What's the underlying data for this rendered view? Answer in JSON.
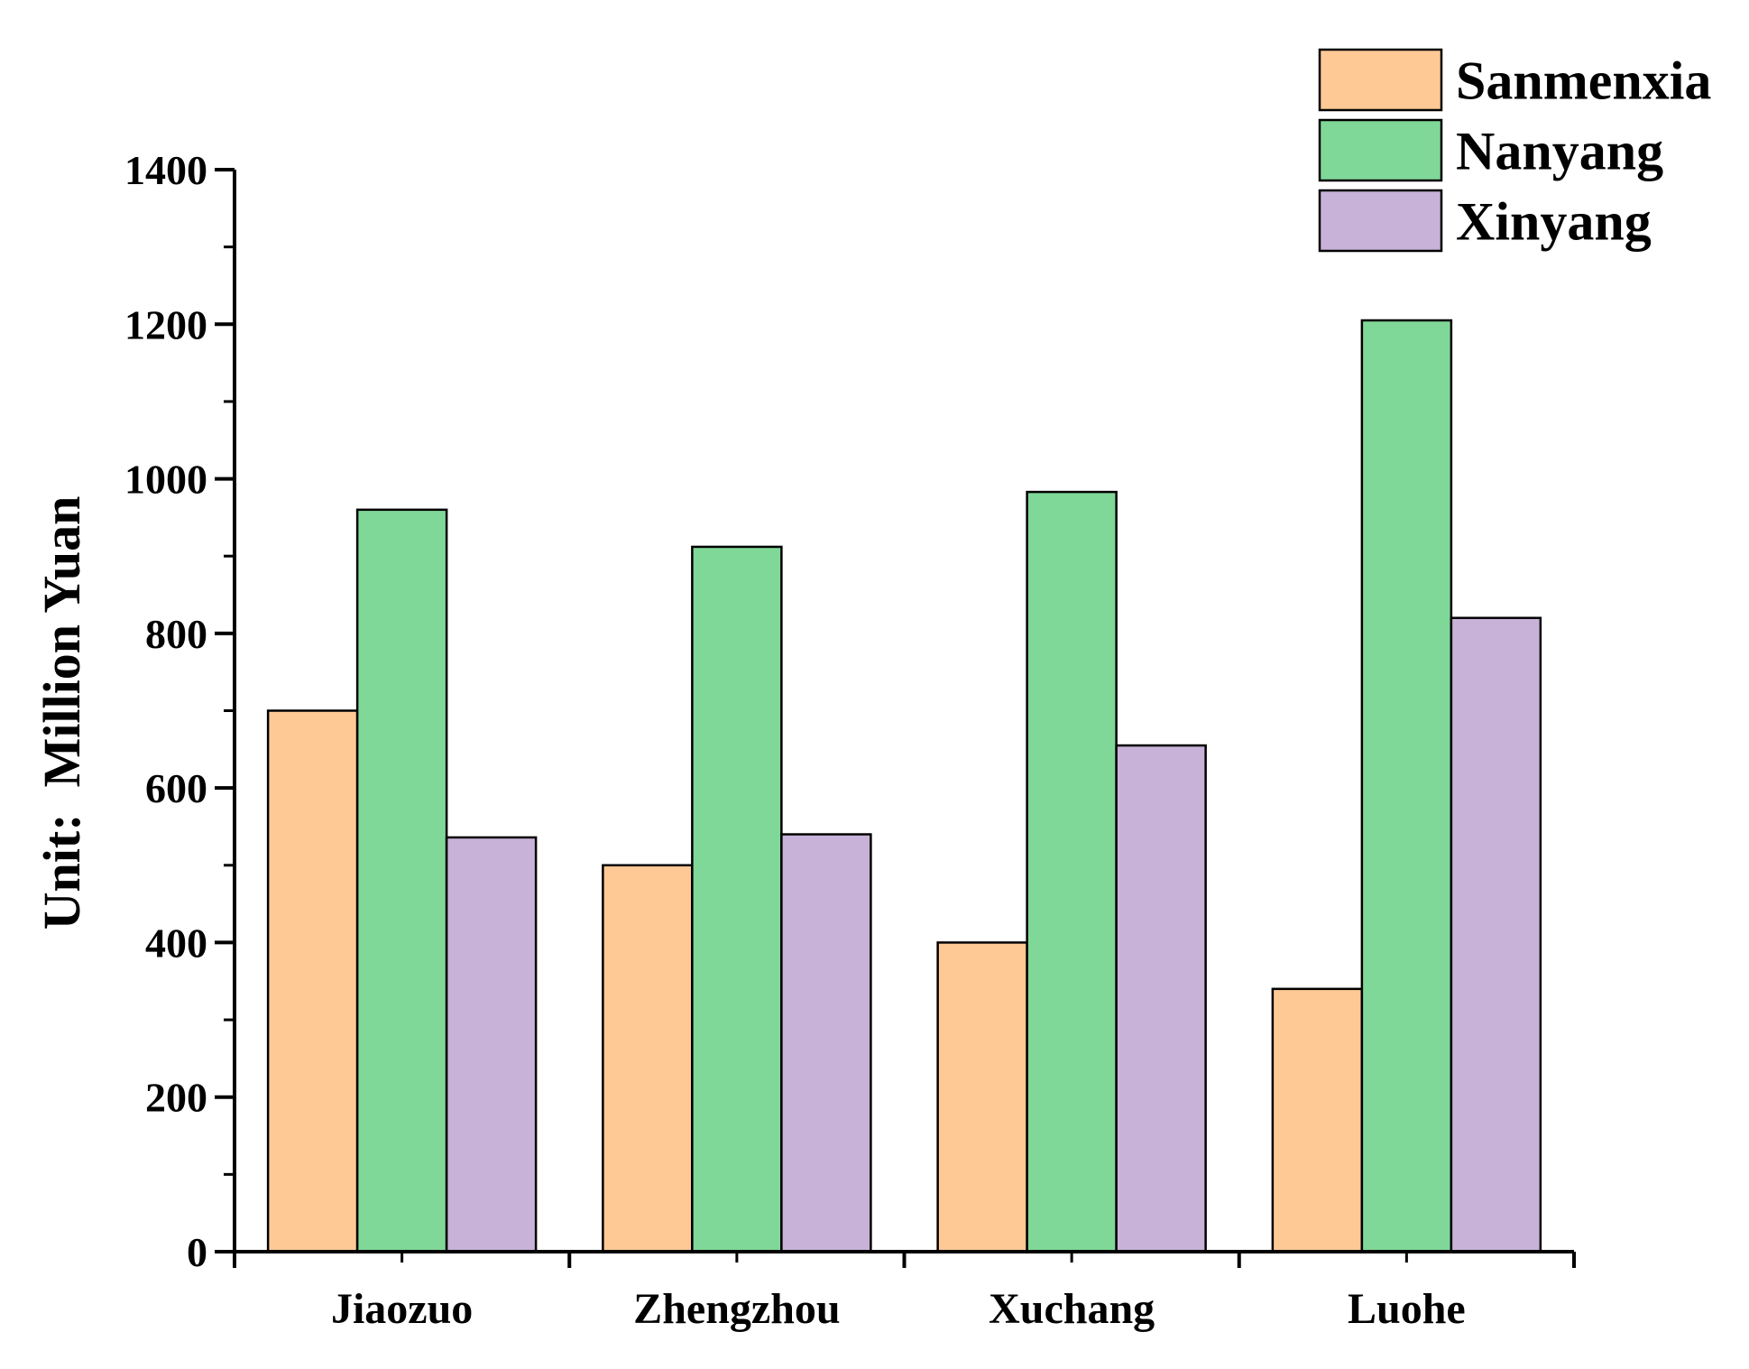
{
  "chart_data": {
    "type": "bar",
    "ylabel": "Unit:  Million Yuan",
    "ylim": [
      0,
      1400
    ],
    "yticks": [
      "0",
      "200",
      "400",
      "600",
      "800",
      "1000",
      "1200",
      "1400"
    ],
    "categories": [
      "Jiaozuo",
      "Zhengzhou",
      "Xuchang",
      "Luohe"
    ],
    "legend_position": "top-right",
    "series": [
      {
        "name": "Sanmenxia",
        "color": "#FFC996",
        "values": [
          700,
          500,
          400,
          340
        ]
      },
      {
        "name": "Nanyang",
        "color": "#80D898",
        "values": [
          960,
          912,
          983,
          1205
        ]
      },
      {
        "name": "Xinyang",
        "color": "#C8B2D8",
        "values": [
          536,
          540,
          655,
          820
        ]
      }
    ]
  }
}
